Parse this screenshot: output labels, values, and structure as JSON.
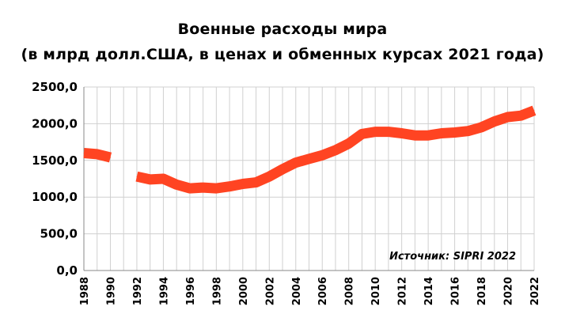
{
  "chart_data": {
    "type": "line",
    "title": "Военные расходы мира",
    "subtitle": "(в млрд долл.США, в ценах и обменных курсах  2021 года)",
    "source_note": "Источник: SIPRI 2022",
    "xlabel": "",
    "ylabel": "",
    "x_tick_labels": [
      "1988",
      "1990",
      "1992",
      "1994",
      "1996",
      "1998",
      "2000",
      "2002",
      "2004",
      "2006",
      "2008",
      "2010",
      "2012",
      "2014",
      "2016",
      "2018",
      "2020",
      "2022"
    ],
    "y_tick_labels": [
      "0,0",
      "500,0",
      "1000,0",
      "1500,0",
      "2000,0",
      "2500,0"
    ],
    "ylim": [
      0,
      2500
    ],
    "xlim": [
      1988,
      2022
    ],
    "grid": true,
    "series_color": "#ff4422",
    "series": [
      {
        "x": [
          1988,
          1989,
          1990,
          1991,
          1992,
          1993,
          1994,
          1995,
          1996,
          1997,
          1998,
          1999,
          2000,
          2001,
          2002,
          2003,
          2004,
          2005,
          2006,
          2007,
          2008,
          2009,
          2010,
          2011,
          2012,
          2013,
          2014,
          2015,
          2016,
          2017,
          2018,
          2019,
          2020,
          2021,
          2022
        ],
        "values": [
          1600,
          1585,
          1540,
          null,
          1280,
          1240,
          1250,
          1170,
          1120,
          1130,
          1120,
          1145,
          1180,
          1200,
          1280,
          1380,
          1470,
          1520,
          1570,
          1640,
          1730,
          1860,
          1890,
          1890,
          1870,
          1840,
          1840,
          1870,
          1880,
          1900,
          1950,
          2030,
          2090,
          2110,
          2180
        ]
      }
    ]
  }
}
